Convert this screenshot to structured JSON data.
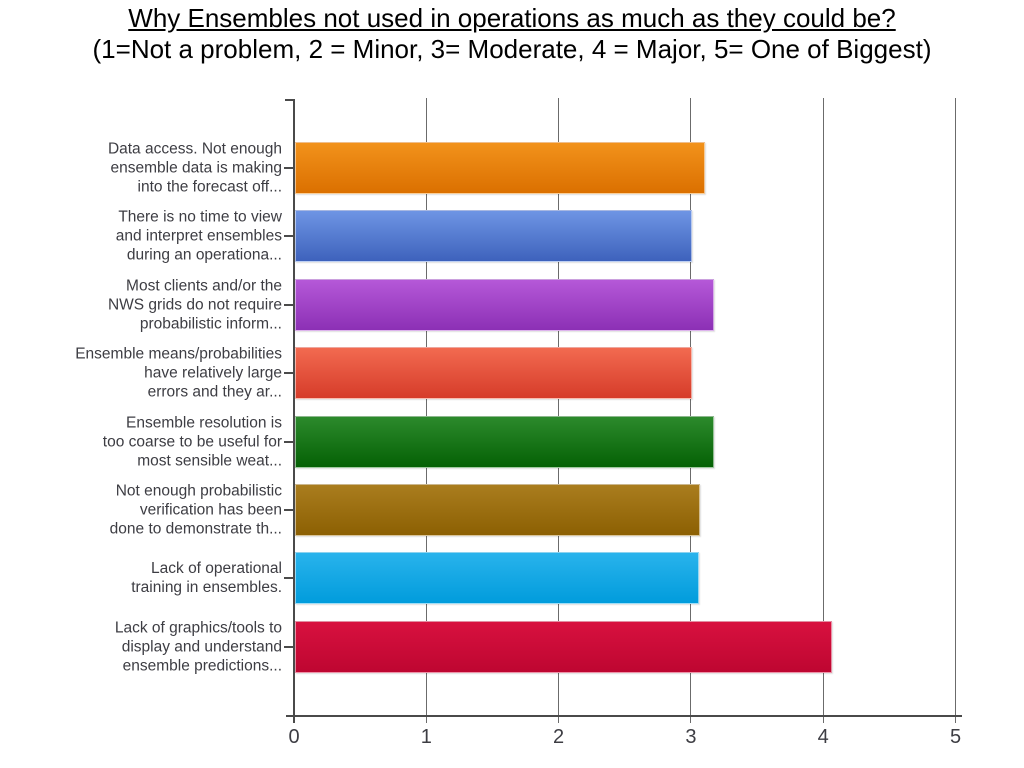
{
  "chart_data": {
    "type": "bar",
    "orientation": "horizontal",
    "title": "Why Ensembles not used in operations as much as they could be?",
    "subtitle": "(1=Not a problem, 2 = Minor, 3= Moderate, 4 = Major, 5= One of Biggest)",
    "categories": [
      "Data access. Not enough\nensemble data is making\ninto the forecast off...",
      "There is no time to view\nand interpret ensembles\nduring an operationa...",
      "Most clients and/or the\nNWS grids do not require\nprobabilistic inform...",
      "Ensemble means/probabilities\nhave relatively large\nerrors and they ar...",
      "Ensemble resolution is\ntoo coarse to be useful for\nmost sensible weat...",
      "Not enough probabilistic\nverification has been\ndone to demonstrate th...",
      "Lack of operational\ntraining in ensembles.",
      "Lack of graphics/tools to\ndisplay and understand\nensemble predictions..."
    ],
    "values": [
      3.1,
      3.0,
      3.17,
      3.0,
      3.17,
      3.06,
      3.05,
      4.06
    ],
    "xlabel": "",
    "ylabel": "",
    "xlim": [
      0,
      5
    ],
    "x_ticks": [
      "0",
      "1",
      "2",
      "3",
      "4",
      "5"
    ],
    "grid": true,
    "legend": "none",
    "bar_colors": [
      {
        "top": "#F2921B",
        "bottom": "#DB7000"
      },
      {
        "top": "#6E95E4",
        "bottom": "#3E62BC"
      },
      {
        "top": "#B558D8",
        "bottom": "#8C30B5"
      },
      {
        "top": "#F26A50",
        "bottom": "#D63C2A"
      },
      {
        "top": "#2C8A2C",
        "bottom": "#056105"
      },
      {
        "top": "#AA7D1E",
        "bottom": "#8C6003"
      },
      {
        "top": "#29B3EC",
        "bottom": "#019CDC"
      },
      {
        "top": "#D8113F",
        "bottom": "#BE0631"
      }
    ],
    "axis_color": "#4A4A4A",
    "gridline_color": "#6B6B6B",
    "label_color": "#3D3D43"
  }
}
